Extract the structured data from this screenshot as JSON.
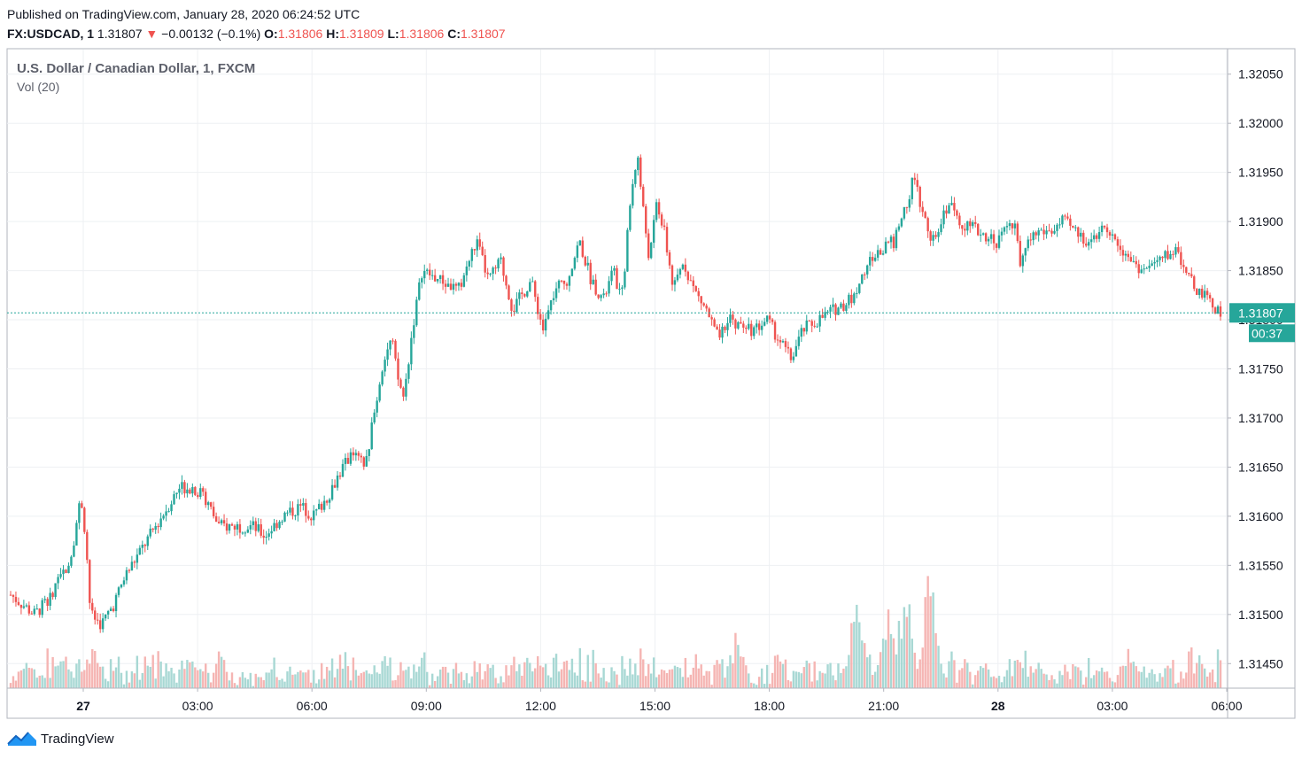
{
  "header": {
    "published": "Published on TradingView.com, January 28, 2020 06:24:52 UTC",
    "symbol": "FX:USDCAD, 1",
    "last": "1.31807",
    "change_arrow": "▼",
    "change": "−0.00132 (−0.1%)",
    "o_label": "O:",
    "o_value": "1.31806",
    "h_label": "H:",
    "h_value": "1.31809",
    "l_label": "L:",
    "l_value": "1.31806",
    "c_label": "C:",
    "c_value": "1.31807"
  },
  "legend": {
    "title": "U.S. Dollar / Canadian Dollar, 1, FXCM",
    "vol": "Vol (20)"
  },
  "footer": {
    "brand": "TradingView",
    "logo_icon": "tradingview-logo-icon"
  },
  "colors": {
    "up": "#26a69a",
    "down": "#ef5350",
    "vol_up": "#a8d8d4",
    "vol_down": "#f5b5b3",
    "grid": "#eef0f3",
    "border": "#b2b5be",
    "price_tag": "#26a69a"
  },
  "chart_data": {
    "type": "candlestick",
    "symbol": "USDCAD",
    "interval": "1",
    "ylim": [
      1.31425,
      1.32075
    ],
    "y_ticks": [
      "1.32050",
      "1.32000",
      "1.31950",
      "1.31900",
      "1.31850",
      "1.31800",
      "1.31750",
      "1.31700",
      "1.31650",
      "1.31600",
      "1.31550",
      "1.31500",
      "1.31450"
    ],
    "x_ticks": [
      "27",
      "03:00",
      "06:00",
      "09:00",
      "12:00",
      "15:00",
      "18:00",
      "21:00",
      "28",
      "03:00",
      "06:00"
    ],
    "last_price": 1.31807,
    "last_price_label": "1.31807",
    "countdown": "00:37",
    "price_path": [
      [
        0,
        1.3152
      ],
      [
        0.02,
        1.315
      ],
      [
        0.035,
        1.3152
      ],
      [
        0.05,
        1.3156
      ],
      [
        0.058,
        1.3162
      ],
      [
        0.062,
        1.3158
      ],
      [
        0.066,
        1.315
      ],
      [
        0.075,
        1.3149
      ],
      [
        0.085,
        1.3151
      ],
      [
        0.095,
        1.3154
      ],
      [
        0.11,
        1.3157
      ],
      [
        0.125,
        1.316
      ],
      [
        0.14,
        1.3163
      ],
      [
        0.15,
        1.3163
      ],
      [
        0.16,
        1.3162
      ],
      [
        0.172,
        1.3159
      ],
      [
        0.185,
        1.3159
      ],
      [
        0.2,
        1.3159
      ],
      [
        0.21,
        1.3158
      ],
      [
        0.225,
        1.316
      ],
      [
        0.24,
        1.3161
      ],
      [
        0.25,
        1.316
      ],
      [
        0.262,
        1.3162
      ],
      [
        0.27,
        1.3164
      ],
      [
        0.28,
        1.3166
      ],
      [
        0.285,
        1.3166
      ],
      [
        0.293,
        1.3165
      ],
      [
        0.3,
        1.317
      ],
      [
        0.308,
        1.3176
      ],
      [
        0.315,
        1.3178
      ],
      [
        0.32,
        1.3174
      ],
      [
        0.325,
        1.3172
      ],
      [
        0.332,
        1.3179
      ],
      [
        0.34,
        1.3185
      ],
      [
        0.355,
        1.3184
      ],
      [
        0.37,
        1.3183
      ],
      [
        0.385,
        1.3188
      ],
      [
        0.395,
        1.3184
      ],
      [
        0.405,
        1.3186
      ],
      [
        0.415,
        1.3181
      ],
      [
        0.43,
        1.3184
      ],
      [
        0.44,
        1.3179
      ],
      [
        0.45,
        1.3183
      ],
      [
        0.46,
        1.3184
      ],
      [
        0.47,
        1.3188
      ],
      [
        0.48,
        1.3184
      ],
      [
        0.49,
        1.3182
      ],
      [
        0.498,
        1.3185
      ],
      [
        0.505,
        1.3182
      ],
      [
        0.513,
        1.3193
      ],
      [
        0.518,
        1.3197
      ],
      [
        0.522,
        1.3192
      ],
      [
        0.528,
        1.3186
      ],
      [
        0.534,
        1.3192
      ],
      [
        0.54,
        1.3189
      ],
      [
        0.548,
        1.3183
      ],
      [
        0.556,
        1.3186
      ],
      [
        0.565,
        1.3183
      ],
      [
        0.575,
        1.3181
      ],
      [
        0.585,
        1.3178
      ],
      [
        0.595,
        1.318
      ],
      [
        0.605,
        1.3179
      ],
      [
        0.615,
        1.3179
      ],
      [
        0.625,
        1.318
      ],
      [
        0.635,
        1.3178
      ],
      [
        0.645,
        1.3176
      ],
      [
        0.655,
        1.3179
      ],
      [
        0.668,
        1.318
      ],
      [
        0.68,
        1.3181
      ],
      [
        0.695,
        1.3182
      ],
      [
        0.71,
        1.3186
      ],
      [
        0.72,
        1.3187
      ],
      [
        0.73,
        1.3188
      ],
      [
        0.737,
        1.319
      ],
      [
        0.745,
        1.3194
      ],
      [
        0.75,
        1.3193
      ],
      [
        0.758,
        1.3189
      ],
      [
        0.765,
        1.3188
      ],
      [
        0.775,
        1.3192
      ],
      [
        0.785,
        1.319
      ],
      [
        0.8,
        1.3189
      ],
      [
        0.815,
        1.3188
      ],
      [
        0.83,
        1.319
      ],
      [
        0.835,
        1.3185
      ],
      [
        0.84,
        1.3188
      ],
      [
        0.85,
        1.3189
      ],
      [
        0.86,
        1.3189
      ],
      [
        0.87,
        1.319
      ],
      [
        0.88,
        1.3189
      ],
      [
        0.89,
        1.3188
      ],
      [
        0.9,
        1.3189
      ],
      [
        0.91,
        1.3189
      ],
      [
        0.92,
        1.3187
      ],
      [
        0.935,
        1.3185
      ],
      [
        0.95,
        1.3186
      ],
      [
        0.96,
        1.3187
      ],
      [
        0.97,
        1.3186
      ],
      [
        0.975,
        1.3184
      ],
      [
        0.98,
        1.3183
      ],
      [
        0.99,
        1.3182
      ],
      [
        1,
        1.31807
      ]
    ],
    "volume": {
      "base_range": [
        2,
        18
      ],
      "spikes": [
        [
          0.04,
          40
        ],
        [
          0.149,
          50
        ],
        [
          0.29,
          20
        ],
        [
          0.45,
          30
        ],
        [
          0.6,
          75
        ],
        [
          0.7,
          135
        ],
        [
          0.725,
          110
        ],
        [
          0.74,
          150
        ],
        [
          0.76,
          165
        ],
        [
          0.83,
          22
        ],
        [
          0.9,
          30
        ],
        [
          0.97,
          15
        ]
      ]
    }
  }
}
